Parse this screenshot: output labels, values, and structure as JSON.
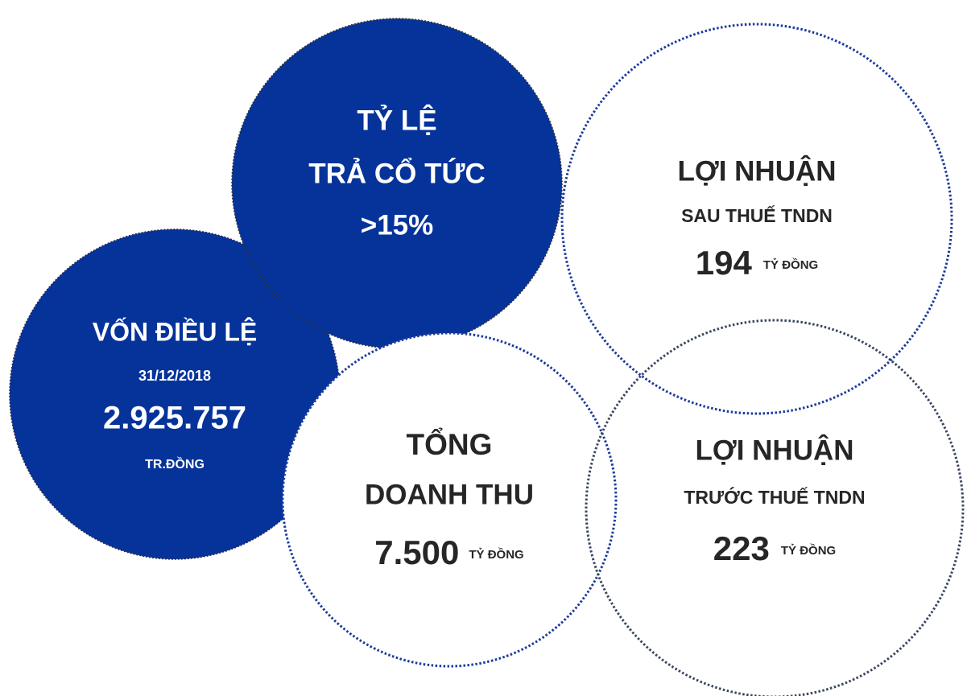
{
  "circles": [
    {
      "lines": [
        "VỐN ĐIỀU LỆ",
        "31/12/2018",
        "2.925.757",
        "TR.ĐỒNG"
      ]
    },
    {
      "lines": [
        "TỶ LỆ",
        "TRẢ CỔ TỨC",
        ">15%"
      ]
    },
    {
      "lines": [
        "LỢI NHUẬN",
        "SAU THUẾ TNDN",
        {
          "number": "194",
          "unit": "TỶ ĐỒNG"
        }
      ]
    },
    {
      "lines": [
        "TỔNG",
        "DOANH THU",
        {
          "number": "7.500",
          "unit": "TỶ ĐỒNG"
        }
      ]
    },
    {
      "lines": [
        "LỢI NHUẬN",
        "TRƯỚC THUẾ TNDN",
        {
          "number": "223",
          "unit": "TỶ ĐỒNG"
        }
      ]
    }
  ]
}
